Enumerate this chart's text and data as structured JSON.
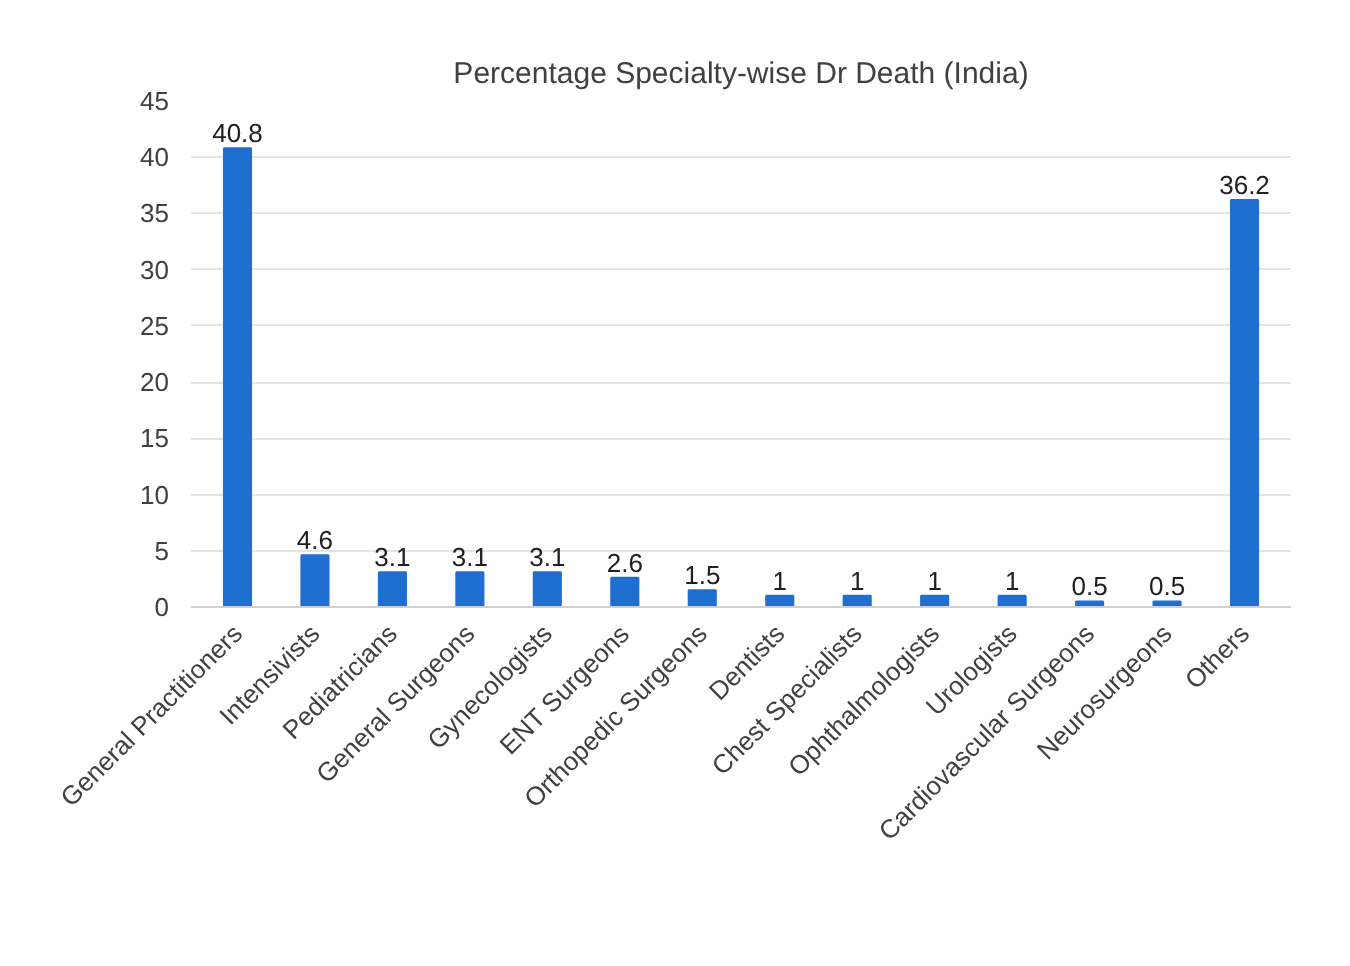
{
  "chart_data": {
    "type": "bar",
    "title": "Percentage Specialty-wise Dr Death (India)",
    "categories": [
      "General Practitioners",
      "Intensivists",
      "Pediatricians",
      "General Surgeons",
      "Gynecologists",
      "ENT Surgeons",
      "Orthopedic Surgeons",
      "Dentists",
      "Chest Specialists",
      "Ophthalmologists",
      "Urologists",
      "Cardiovascular Surgeons",
      "Neurosurgeons",
      "Others"
    ],
    "values": [
      40.8,
      4.6,
      3.1,
      3.1,
      3.1,
      2.6,
      1.5,
      1,
      1,
      1,
      1,
      0.5,
      0.5,
      36.2
    ],
    "color": "#1f6fd1",
    "ylim": [
      0,
      45
    ],
    "yticks": [
      0,
      5,
      10,
      15,
      20,
      25,
      30,
      35,
      40,
      45
    ],
    "grid": "y",
    "data_labels": true
  }
}
